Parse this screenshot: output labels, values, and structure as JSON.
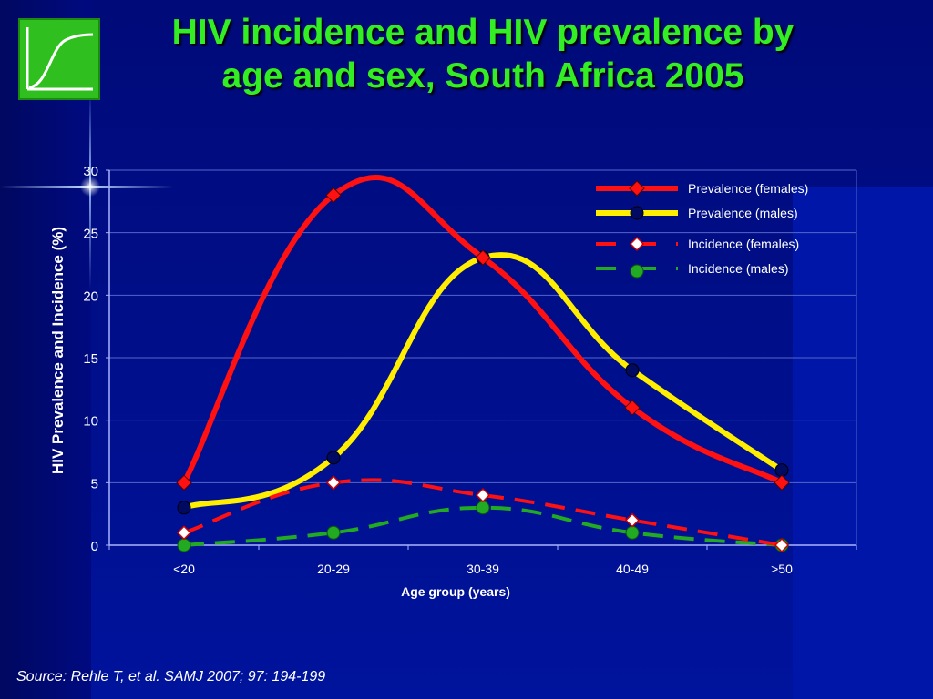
{
  "slide": {
    "title_line1": "HIV incidence and HIV prevalence by",
    "title_line2": "age and sex, South Africa 2005",
    "source": "Source: Rehle T, et al.  SAMJ 2007; 97: 194-199",
    "logo_icon": "growth-curve-icon"
  },
  "colors": {
    "background": "#000a80",
    "title": "#33ee22",
    "prevalence_females": "#ff1111",
    "prevalence_males": "#ffee00",
    "incidence_females": "#ff1111",
    "incidence_males": "#22aa22"
  },
  "chart_data": {
    "type": "line",
    "xlabel": "Age group (years)",
    "ylabel": "HIV Prevalence and Incidence (%)",
    "categories": [
      "<20",
      "20-29",
      "30-39",
      "40-49",
      ">50"
    ],
    "ylim": [
      0,
      30
    ],
    "yticks": [
      0,
      5,
      10,
      15,
      20,
      25,
      30
    ],
    "grid": true,
    "legend_position": "top-right",
    "series": [
      {
        "name": "Prevalence (females)",
        "values": [
          5,
          28,
          23,
          11,
          5
        ],
        "color": "#ff1111",
        "style": "solid",
        "marker": "diamond-filled"
      },
      {
        "name": "Prevalence (males)",
        "values": [
          3,
          7,
          23,
          14,
          6
        ],
        "color": "#ffee00",
        "style": "solid",
        "marker": "circle-navy"
      },
      {
        "name": "Incidence (females)",
        "values": [
          1,
          5,
          4,
          2,
          0
        ],
        "color": "#ff1111",
        "style": "dashed",
        "marker": "diamond-white"
      },
      {
        "name": "Incidence (males)",
        "values": [
          0,
          1,
          3,
          1,
          0
        ],
        "color": "#22aa22",
        "style": "dashed",
        "marker": "circle-green"
      }
    ]
  }
}
